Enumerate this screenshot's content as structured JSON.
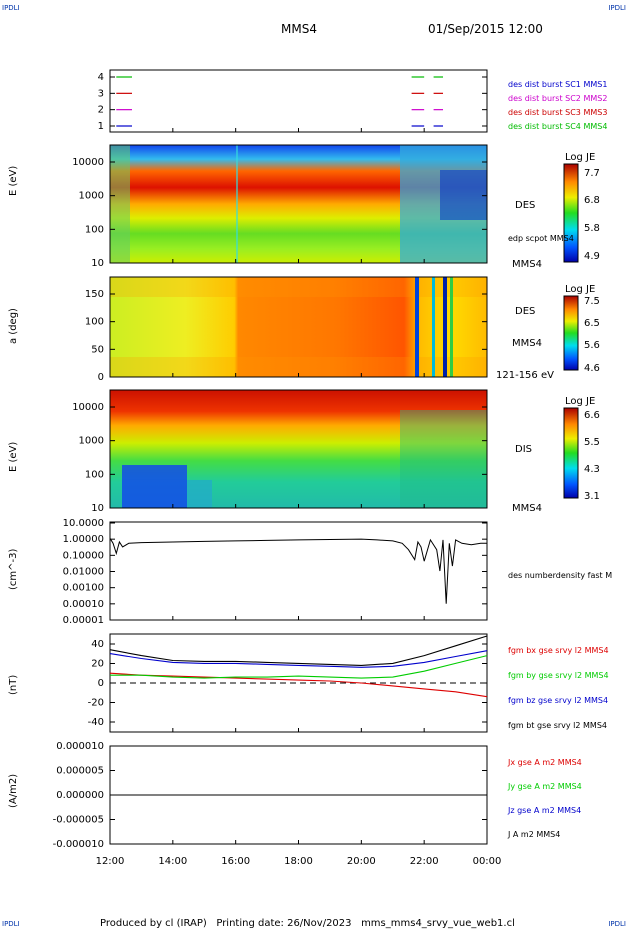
{
  "header": {
    "corner_tl": "IPDLI",
    "corner_tr": "IPDLI",
    "corner_bl": "IPDLI",
    "corner_br": "IPDLI",
    "spacecraft": "MMS4",
    "datetime": "01/Sep/2015 12:00"
  },
  "footer": {
    "produced_by": "Produced by cl (IRAP)",
    "printing_date": "Printing date: 26/Nov/2023",
    "file": "mms_mms4_srvy_vue_web1.cl"
  },
  "time_axis": {
    "ticks": [
      "12:00",
      "14:00",
      "16:00",
      "18:00",
      "20:00",
      "22:00",
      "00:00"
    ],
    "hours": [
      12,
      14,
      16,
      18,
      20,
      22,
      24
    ]
  },
  "colors": {
    "mms1": "#0000cc",
    "mms2": "#cc00cc",
    "mms3": "#cc0000",
    "mms4": "#00bb00",
    "bx": "#dd0000",
    "by": "#00cc00",
    "bz": "#0000cc",
    "bt": "#000000"
  },
  "chart_data": [
    {
      "type": "line",
      "panel": "burst",
      "yticks": [
        "4",
        "3",
        "2",
        "1"
      ],
      "series": [
        {
          "name": "des dist burst SC1 MMS1",
          "level": 1,
          "color": "#0000cc",
          "intervals": [
            [
              12.2,
              12.7
            ],
            [
              21.6,
              22.0
            ],
            [
              22.3,
              22.6
            ]
          ]
        },
        {
          "name": "des dist burst SC2 MMS2",
          "level": 2,
          "color": "#cc00cc",
          "intervals": [
            [
              12.2,
              12.7
            ],
            [
              21.6,
              22.0
            ],
            [
              22.3,
              22.6
            ]
          ]
        },
        {
          "name": "des dist burst SC3 MMS3",
          "level": 3,
          "color": "#cc0000",
          "intervals": [
            [
              12.2,
              12.7
            ],
            [
              21.6,
              22.0
            ],
            [
              22.3,
              22.6
            ]
          ]
        },
        {
          "name": "des dist burst SC4 MMS4",
          "level": 4,
          "color": "#00bb00",
          "intervals": [
            [
              12.2,
              12.7
            ],
            [
              21.6,
              22.0
            ],
            [
              22.3,
              22.6
            ]
          ]
        }
      ]
    },
    {
      "type": "heatmap",
      "panel": "des_energy",
      "ylabel": "E (eV)",
      "yticks": [
        "10000",
        "1000",
        "100",
        "10"
      ],
      "label": "DES",
      "label2": "MMS4",
      "overlay": "edp scpot MMS4",
      "colorbar": {
        "title": "Log JE",
        "ticks": [
          "7.7",
          "6.8",
          "5.8",
          "4.9"
        ]
      }
    },
    {
      "type": "heatmap",
      "panel": "des_pitch",
      "ylabel": "a (deg)",
      "yticks": [
        "150",
        "100",
        "50",
        "0"
      ],
      "label": "DES",
      "label2": "MMS4",
      "label3": "121-156 eV",
      "colorbar": {
        "title": "Log JE",
        "ticks": [
          "7.5",
          "6.5",
          "5.6",
          "4.6"
        ]
      }
    },
    {
      "type": "heatmap",
      "panel": "dis_energy",
      "ylabel": "E (eV)",
      "yticks": [
        "10000",
        "1000",
        "100",
        "10"
      ],
      "label": "DIS",
      "label2": "MMS4",
      "colorbar": {
        "title": "Log JE",
        "ticks": [
          "6.6",
          "5.5",
          "4.3",
          "3.1"
        ]
      }
    },
    {
      "type": "line",
      "panel": "density",
      "ylabel": "(cm^-3)",
      "yscale": "log",
      "yticks": [
        "10.0000",
        "1.00000",
        "0.10000",
        "0.01000",
        "0.00100",
        "0.00010",
        "0.00001"
      ],
      "series": [
        {
          "name": "des numberdensity fast M",
          "color": "#000000",
          "x": [
            12.0,
            12.1,
            12.2,
            12.3,
            12.4,
            12.6,
            13.0,
            14.0,
            15.0,
            16.0,
            17.0,
            18.0,
            19.0,
            20.0,
            20.5,
            21.0,
            21.3,
            21.5,
            21.7,
            21.8,
            21.9,
            22.0,
            22.2,
            22.4,
            22.5,
            22.6,
            22.7,
            22.8,
            22.9,
            23.0,
            23.2,
            23.5,
            23.8,
            24.0
          ],
          "y": [
            1.0,
            0.5,
            0.12,
            0.6,
            0.3,
            0.5,
            0.55,
            0.6,
            0.65,
            0.7,
            0.75,
            0.8,
            0.85,
            0.9,
            0.8,
            0.7,
            0.5,
            0.2,
            0.05,
            0.6,
            0.3,
            0.04,
            0.8,
            0.2,
            0.01,
            0.8,
            0.0001,
            0.5,
            0.02,
            0.8,
            0.5,
            0.4,
            0.5,
            0.5
          ]
        }
      ]
    },
    {
      "type": "line",
      "panel": "bfield",
      "ylabel": "(nT)",
      "yticks": [
        "40",
        "20",
        "0",
        "-20",
        "-40"
      ],
      "ylim": [
        -50,
        50
      ],
      "series": [
        {
          "name": "fgm bx gse srvy l2 MMS4",
          "color": "#dd0000",
          "x": [
            12,
            13,
            14,
            15,
            16,
            17,
            18,
            19,
            20,
            21,
            22,
            23,
            24
          ],
          "y": [
            10,
            8,
            7,
            6,
            5,
            4,
            3,
            2,
            0,
            -3,
            -6,
            -9,
            -14
          ]
        },
        {
          "name": "fgm by gse srvy l2 MMS4",
          "color": "#00cc00",
          "x": [
            12,
            13,
            14,
            15,
            16,
            17,
            18,
            19,
            20,
            21,
            22,
            23,
            24
          ],
          "y": [
            8,
            8,
            6,
            5,
            6,
            6,
            7,
            6,
            5,
            6,
            12,
            20,
            28
          ]
        },
        {
          "name": "fgm bz gse srvy l2 MMS4",
          "color": "#0000cc",
          "x": [
            12,
            13,
            14,
            15,
            16,
            17,
            18,
            19,
            20,
            21,
            22,
            23,
            24
          ],
          "y": [
            30,
            25,
            21,
            20,
            20,
            19,
            18,
            17,
            16,
            17,
            21,
            27,
            33
          ]
        },
        {
          "name": "fgm bt gse srvy l2 MMS4",
          "color": "#000000",
          "x": [
            12,
            13,
            14,
            15,
            16,
            17,
            18,
            19,
            20,
            21,
            22,
            23,
            24
          ],
          "y": [
            34,
            28,
            23,
            22,
            22,
            21,
            20,
            19,
            18,
            20,
            28,
            38,
            48
          ]
        }
      ]
    },
    {
      "type": "line",
      "panel": "current",
      "ylabel": "(A/m2)",
      "yticks": [
        "0.000010",
        "0.000005",
        "0.000000",
        "-0.000005",
        "-0.000010"
      ],
      "ylim": [
        -1e-05,
        1e-05
      ],
      "series": [
        {
          "name": "Jx gse A m2 MMS4",
          "color": "#dd0000"
        },
        {
          "name": "Jy gse A m2 MMS4",
          "color": "#00cc00"
        },
        {
          "name": "Jz gse A m2 MMS4",
          "color": "#0000cc"
        },
        {
          "name": "J A m2 MMS4",
          "color": "#000000",
          "x": [
            12,
            24
          ],
          "y": [
            0,
            0
          ]
        }
      ]
    }
  ]
}
